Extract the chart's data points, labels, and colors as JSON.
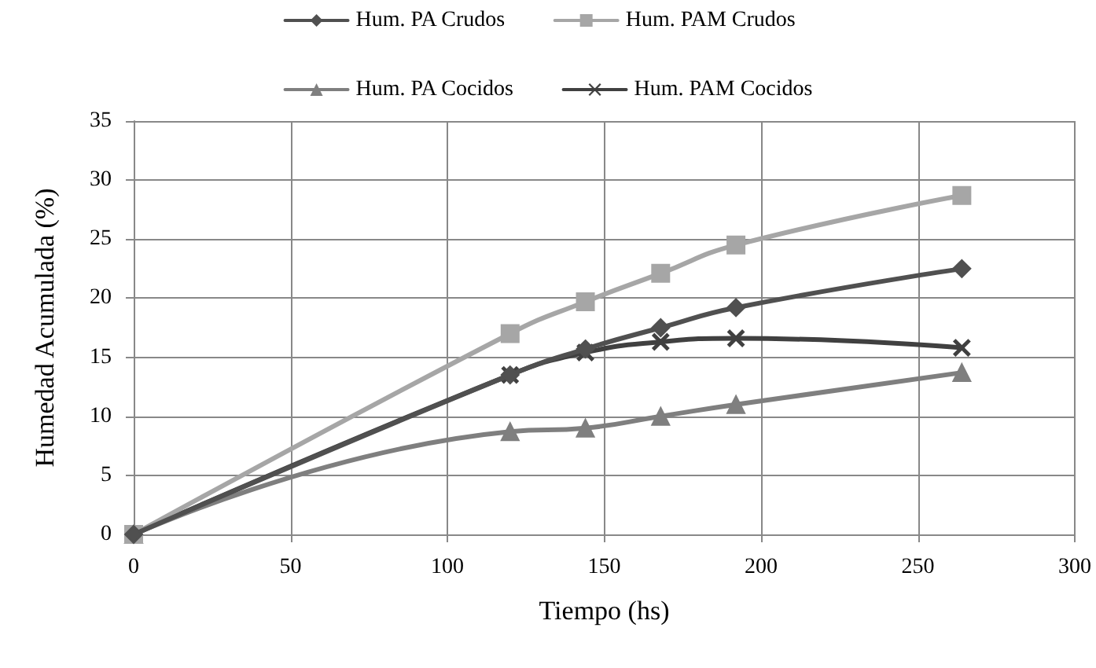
{
  "chart_data": {
    "type": "line",
    "xlabel": "Tiempo (hs)",
    "ylabel": "Humedad Acumulada (%)",
    "x": [
      0,
      120,
      144,
      168,
      192,
      264
    ],
    "series": [
      {
        "name": "Hum. PA Crudos",
        "color": "#505050",
        "marker": "diamond",
        "values": [
          0,
          13.5,
          15.7,
          17.5,
          19.2,
          22.5
        ]
      },
      {
        "name": "Hum. PAM Crudos",
        "color": "#a6a6a6",
        "marker": "square",
        "values": [
          0,
          17,
          19.7,
          22.1,
          24.5,
          28.7
        ]
      },
      {
        "name": "Hum. PA Cocidos",
        "color": "#7f7f7f",
        "marker": "triangle",
        "values": [
          0,
          8.7,
          9,
          10,
          11,
          13.7
        ]
      },
      {
        "name": "Hum. PAM Cocidos",
        "color": "#404040",
        "marker": "cross",
        "values": [
          0,
          13.5,
          15.4,
          16.3,
          16.6,
          15.8
        ]
      }
    ],
    "xlim": [
      0,
      300
    ],
    "xticks": [
      0,
      50,
      100,
      150,
      200,
      250,
      300
    ],
    "ylim": [
      0,
      35
    ],
    "yticks": [
      0,
      5,
      10,
      15,
      20,
      25,
      30,
      35
    ],
    "grid": true,
    "legend": "top",
    "line_style": "solid"
  }
}
